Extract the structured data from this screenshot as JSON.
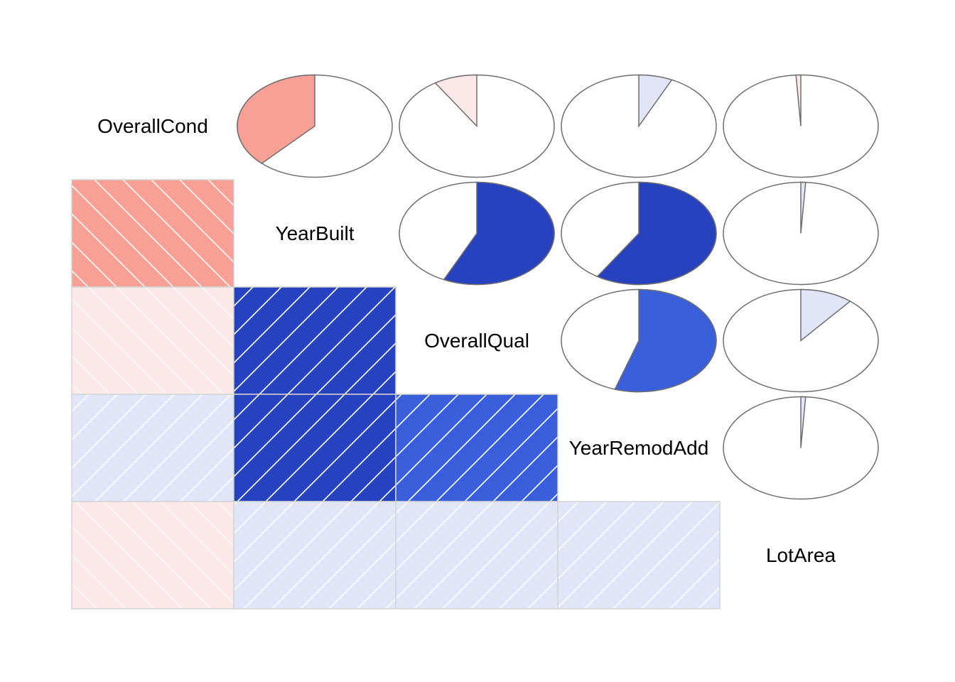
{
  "chart_data": {
    "type": "heatmap",
    "variables": [
      "OverallCond",
      "YearBuilt",
      "OverallQual",
      "YearRemodAdd",
      "LotArea"
    ],
    "correlations": [
      [
        1.0,
        -0.38,
        -0.09,
        0.07,
        -0.01
      ],
      [
        -0.38,
        1.0,
        0.57,
        0.59,
        0.01
      ],
      [
        -0.09,
        0.57,
        1.0,
        0.55,
        0.11
      ],
      [
        0.07,
        0.59,
        0.55,
        1.0,
        0.01
      ],
      [
        -0.01,
        0.01,
        0.11,
        0.01,
        1.0
      ]
    ],
    "lower_panel": "shade",
    "upper_panel": "pie",
    "diagonal_panel": "text",
    "value_range": [
      -1,
      1
    ],
    "colors": {
      "negative_strong": "#f8a096",
      "negative_weak": "#fde8e8",
      "positive_weak": "#e0e6f8",
      "positive_medium": "#3a5fdb",
      "positive_strong": "#2742be",
      "pie_outline": "#6e6e6e",
      "shade_border": "#d3d3d3",
      "hatch_line": "#ffffff"
    }
  }
}
